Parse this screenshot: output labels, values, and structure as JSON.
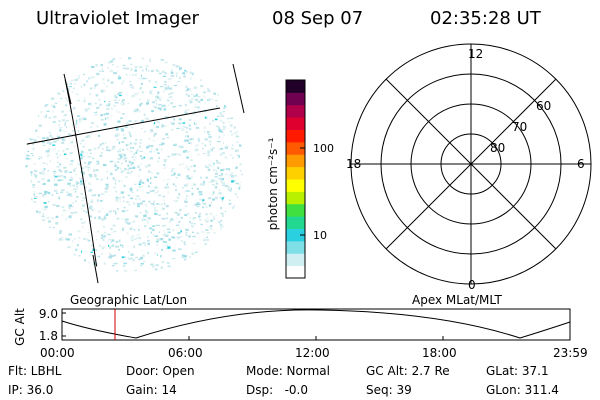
{
  "header": {
    "title": "Ultraviolet Imager",
    "date": "08 Sep 07",
    "time": "02:35:28 UT"
  },
  "colorbar": {
    "unit_label": "photon cm⁻²s⁻¹",
    "ticks": [
      "100",
      "10"
    ],
    "colors": [
      "#ffffff",
      "#cfeff2",
      "#7fdfe6",
      "#2ad0e0",
      "#22d890",
      "#40e040",
      "#b8f000",
      "#ffff00",
      "#ffd000",
      "#ff9a00",
      "#ff5a00",
      "#ff1a00",
      "#e00030",
      "#b0004a",
      "#700050",
      "#200028"
    ]
  },
  "polar": {
    "mlt_labels": {
      "top": "12",
      "left": "18",
      "right": "6",
      "bottom": "0"
    },
    "mlat_labels": [
      "60",
      "70",
      "80"
    ]
  },
  "timeline": {
    "left_title": "Geographic Lat/Lon",
    "right_title": "Apex MLat/MLT",
    "ylabel": "GC Alt",
    "yticks": [
      "9.0",
      "1.8"
    ],
    "xticks": [
      "00:00",
      "06:00",
      "12:00",
      "18:00",
      "23:59"
    ],
    "current_time_marker_color": "#cc0000"
  },
  "info": {
    "flt": "Flt: LBHL",
    "door": "Door: Open",
    "mode": "Mode: Normal",
    "gc_alt": "GC Alt: 2.7 Re",
    "glat": "GLat:  37.1",
    "ip": "IP: 36.0",
    "gain": "Gain: 14",
    "dsp": "Dsp:   -0.0",
    "seq": "Seq: 39",
    "glon": "GLon: 311.4"
  }
}
